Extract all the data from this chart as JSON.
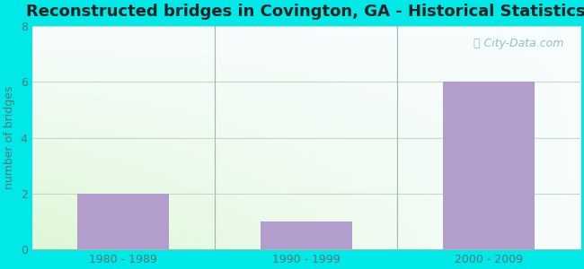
{
  "title": "Reconstructed bridges in Covington, GA - Historical Statistics",
  "categories": [
    "1980 - 1989",
    "1990 - 1999",
    "2000 - 2009"
  ],
  "values": [
    2,
    1,
    6
  ],
  "bar_color": "#b39dcc",
  "ylim": [
    0,
    8
  ],
  "yticks": [
    0,
    2,
    4,
    6,
    8
  ],
  "ylabel": "number of bridges",
  "background_outer": "#00e8e8",
  "grid_color": "#c8d8c8",
  "title_fontsize": 13,
  "axis_label_fontsize": 9,
  "tick_fontsize": 9,
  "watermark_text": "City-Data.com",
  "watermark_color": "#88bbbb",
  "title_color": "#222222",
  "tick_color": "#557777",
  "bar_width": 0.5
}
